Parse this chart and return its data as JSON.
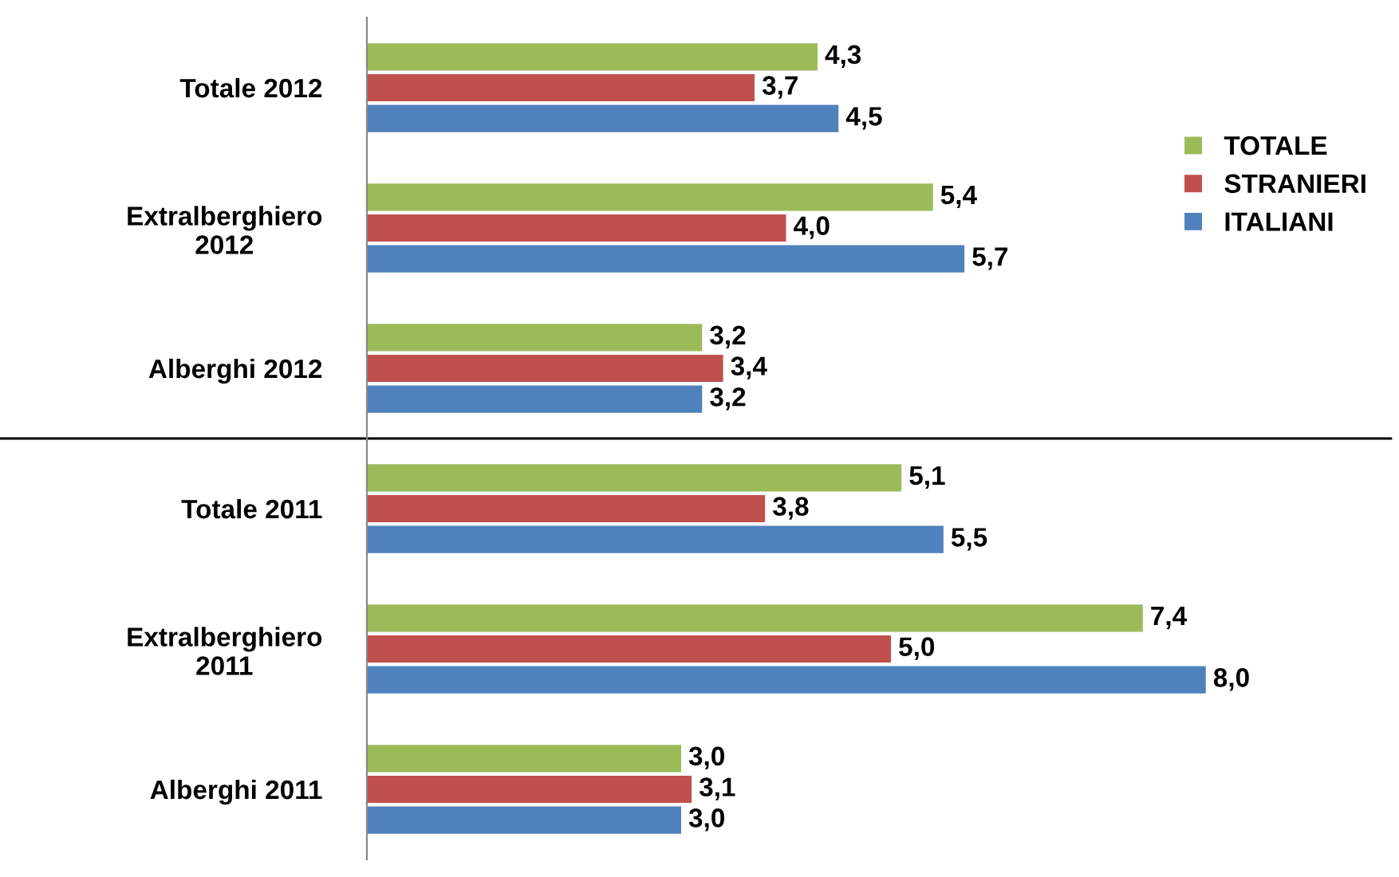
{
  "chart_data": {
    "type": "bar",
    "orientation": "horizontal",
    "categories": [
      "Totale 2012",
      "Extralberghiero\n2012",
      "Alberghi 2012",
      "Totale 2011",
      "Extralberghiero\n2011",
      "Alberghi 2011"
    ],
    "series": [
      {
        "name": "TOTALE",
        "color": "#9bbb59",
        "values": [
          4.3,
          5.4,
          3.2,
          5.1,
          7.4,
          3.0
        ],
        "value_labels": [
          "4,3",
          "5,4",
          "3,2",
          "5,1",
          "7,4",
          "3,0"
        ]
      },
      {
        "name": "STRANIERI",
        "color": "#c0504d",
        "values": [
          3.7,
          4.0,
          3.4,
          3.8,
          5.0,
          3.1
        ],
        "value_labels": [
          "3,7",
          "4,0",
          "3,4",
          "3,8",
          "5,0",
          "3,1"
        ]
      },
      {
        "name": "ITALIANI",
        "color": "#4f81bd",
        "values": [
          4.5,
          5.7,
          3.2,
          5.5,
          8.0,
          3.0
        ],
        "value_labels": [
          "4,5",
          "5,7",
          "3,2",
          "5,5",
          "8,0",
          "3,0"
        ]
      }
    ],
    "legend": "right",
    "grid": false,
    "tick_labels": "y"
  }
}
